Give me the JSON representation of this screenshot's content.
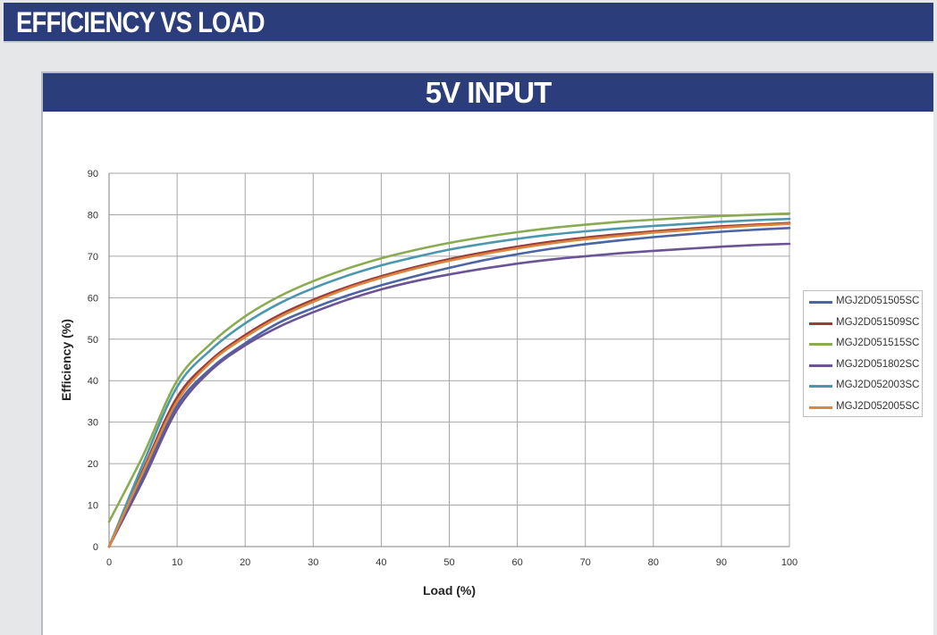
{
  "page": {
    "title": "EFFICIENCY VS LOAD",
    "subtitle": "5V INPUT"
  },
  "colors": {
    "banner": "#2b3d7a",
    "background": "#e6e7e8",
    "grid": "#a6a6a6"
  },
  "chart_data": {
    "type": "line",
    "title": "5V INPUT",
    "xlabel": "Load  (%)",
    "ylabel": "Efficiency  (%)",
    "xlim": [
      0,
      100
    ],
    "ylim": [
      0,
      90
    ],
    "xticks": [
      0,
      10,
      20,
      30,
      40,
      50,
      60,
      70,
      80,
      90,
      100
    ],
    "yticks": [
      0,
      10,
      20,
      30,
      40,
      50,
      60,
      70,
      80,
      90
    ],
    "grid": true,
    "legend_position": "right",
    "x": [
      0,
      5,
      10,
      15,
      20,
      25,
      30,
      35,
      40,
      45,
      50,
      55,
      60,
      65,
      70,
      75,
      80,
      85,
      90,
      95,
      100
    ],
    "series": [
      {
        "name": "MGJ2D051505SC",
        "color": "#4a64a4",
        "values": [
          0,
          17,
          34,
          43,
          49,
          54,
          57.5,
          60.5,
          63,
          65.2,
          67.2,
          69,
          70.5,
          71.8,
          72.9,
          73.8,
          74.6,
          75.3,
          75.9,
          76.4,
          76.8
        ]
      },
      {
        "name": "MGJ2D051509SC",
        "color": "#9c3b37",
        "values": [
          0,
          18.5,
          36,
          45,
          51,
          55.8,
          59.5,
          62.6,
          65.2,
          67.4,
          69.3,
          70.9,
          72.3,
          73.5,
          74.5,
          75.3,
          76,
          76.6,
          77.2,
          77.6,
          78
        ]
      },
      {
        "name": "MGJ2D051515SC",
        "color": "#8aab52",
        "values": [
          6,
          22,
          40,
          49,
          55.5,
          60.3,
          64,
          67,
          69.5,
          71.5,
          73.2,
          74.6,
          75.8,
          76.8,
          77.6,
          78.3,
          78.8,
          79.3,
          79.7,
          80,
          80.3
        ]
      },
      {
        "name": "MGJ2D051802SC",
        "color": "#6a5496",
        "values": [
          0,
          16,
          33,
          42.5,
          48.5,
          53,
          56.5,
          59.5,
          62,
          64,
          65.6,
          67,
          68.2,
          69.2,
          70,
          70.7,
          71.3,
          71.8,
          72.3,
          72.7,
          73
        ]
      },
      {
        "name": "MGJ2D052003SC",
        "color": "#4b97ae",
        "values": [
          0,
          20,
          38.5,
          47.5,
          53.8,
          58.6,
          62.3,
          65.3,
          67.8,
          69.8,
          71.6,
          73,
          74.2,
          75.2,
          76,
          76.7,
          77.3,
          77.8,
          78.3,
          78.7,
          79
        ]
      },
      {
        "name": "MGJ2D052005SC",
        "color": "#d98740",
        "values": [
          0,
          18,
          35,
          44.5,
          50.5,
          55.3,
          59,
          62.2,
          64.8,
          67,
          68.9,
          70.5,
          71.9,
          73.1,
          74.1,
          74.9,
          75.7,
          76.3,
          76.9,
          77.4,
          77.8
        ]
      }
    ]
  }
}
